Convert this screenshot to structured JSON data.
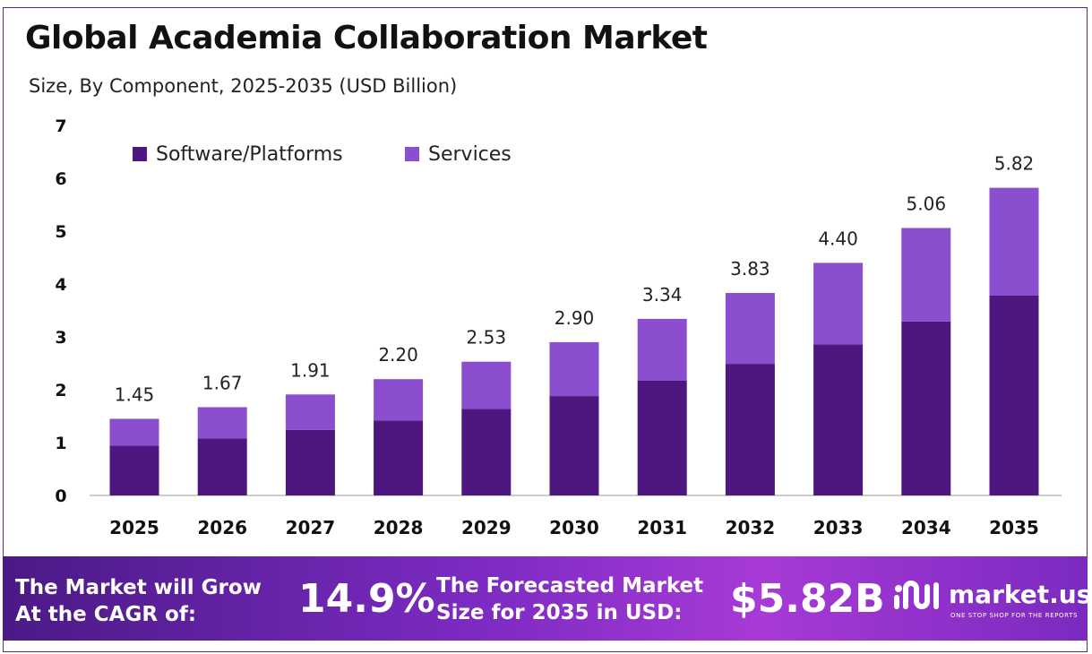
{
  "chart_title": "Global Academia Collaboration Market",
  "chart_subtitle": "Size, By Component, 2025-2035 (USD Billion)",
  "colors": {
    "software": "#4d177f",
    "services": "#8a4ecf",
    "frame": "#5b2a86",
    "axis": "#bbbbbb"
  },
  "chart_data": {
    "type": "bar",
    "stacked": true,
    "categories": [
      "2025",
      "2026",
      "2027",
      "2028",
      "2029",
      "2030",
      "2031",
      "2032",
      "2033",
      "2034",
      "2035"
    ],
    "series": [
      {
        "name": "Software/Platforms",
        "values": [
          0.94,
          1.08,
          1.24,
          1.42,
          1.64,
          1.88,
          2.17,
          2.49,
          2.86,
          3.29,
          3.78
        ]
      },
      {
        "name": "Services",
        "values": [
          0.51,
          0.59,
          0.67,
          0.78,
          0.89,
          1.02,
          1.17,
          1.34,
          1.54,
          1.77,
          2.04
        ]
      }
    ],
    "totals": [
      "1.45",
      "1.67",
      "1.91",
      "2.20",
      "2.53",
      "2.90",
      "3.34",
      "3.83",
      "4.40",
      "5.06",
      "5.82"
    ],
    "yticks": [
      "0",
      "1",
      "2",
      "3",
      "4",
      "5",
      "6",
      "7"
    ],
    "ylim": [
      0,
      7
    ],
    "grid": false,
    "legend_position": "top-left"
  },
  "footer": {
    "cagr_label": "The Market will Grow At the CAGR of:",
    "cagr_value": "14.9%",
    "forecast_label": "The Forecasted Market Size for 2035 in USD:",
    "forecast_value": "$5.82B",
    "brand_name": "market.us",
    "brand_tagline": "ONE STOP SHOP FOR THE REPORTS",
    "brand_icon": "market-us-logo-icon"
  }
}
